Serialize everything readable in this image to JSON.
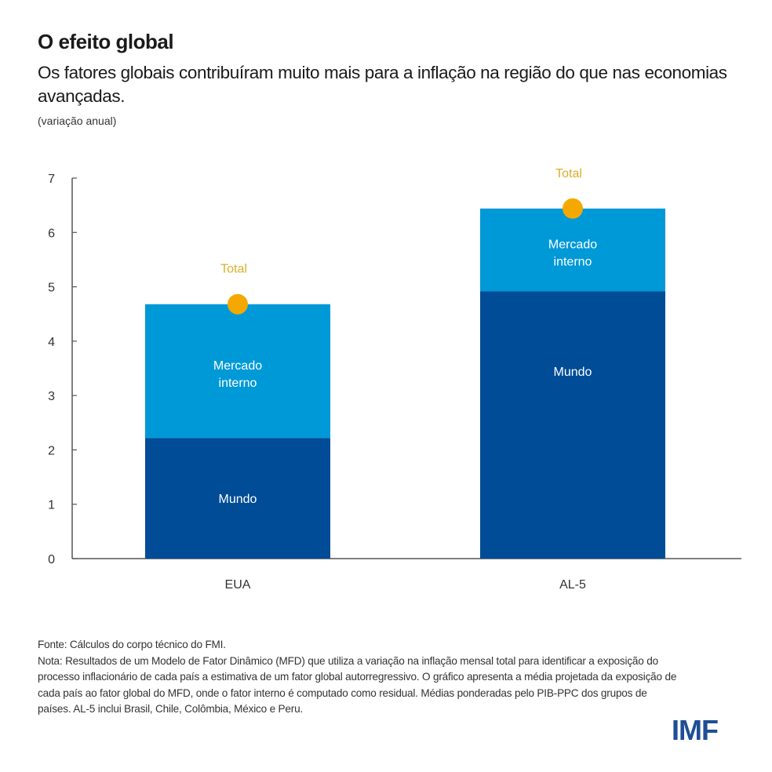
{
  "header": {
    "title": "O efeito global",
    "subtitle": "Os fatores globais contribuíram muito mais para a inflação na região do que nas economias avançadas.",
    "unit": "(variação anual)"
  },
  "chart_data": {
    "type": "bar",
    "stacked": true,
    "categories": [
      "EUA",
      "AL-5"
    ],
    "series": [
      {
        "name": "Mundo",
        "values": [
          2.22,
          4.92
        ],
        "color": "#004c97"
      },
      {
        "name": "Mercado interno",
        "values": [
          2.46,
          1.52
        ],
        "color": "#0099d8"
      }
    ],
    "total": {
      "name": "Total",
      "values": [
        4.68,
        6.44
      ],
      "color": "#f5a800"
    },
    "ylim": [
      0,
      7
    ],
    "yticks": [
      "0",
      "1",
      "2",
      "3",
      "4",
      "5",
      "6",
      "7"
    ],
    "grid": false,
    "segment_labels": {
      "mundo": "Mundo",
      "interno_line1": "Mercado",
      "interno_line2": "interno",
      "total": "Total"
    }
  },
  "footer": {
    "source": "Fonte: Cálculos do corpo técnico do FMI.",
    "note": "Nota: Resultados de um Modelo de Fator Dinâmico (MFD) que utiliza a variação na inflação mensal total para identificar a exposição do processo inflacionário de cada país a estimativa de um fator global autorregressivo. O gráfico apresenta a média projetada da exposição de cada país ao fator global do MFD, onde o fator interno é computado como residual. Médias ponderadas pelo PIB-PPC dos grupos de países. AL-5 inclui Brasil, Chile, Colômbia, México e Peru.",
    "logo": "IMF"
  }
}
